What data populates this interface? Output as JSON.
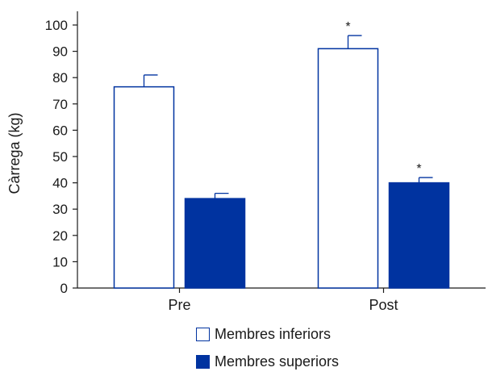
{
  "chart_data": {
    "type": "bar",
    "categories": [
      "Pre",
      "Post"
    ],
    "ylabel": "Càrrega (kg)",
    "ylim": [
      0,
      100
    ],
    "yticks": [
      0,
      10,
      20,
      30,
      40,
      50,
      60,
      70,
      80,
      90,
      100
    ],
    "series": [
      {
        "name": "Membres inferiors",
        "values": [
          76.5,
          91
        ],
        "errors": [
          4.5,
          5
        ],
        "significance": [
          "",
          "*"
        ],
        "fill": "#ffffff",
        "stroke": "#0033a0"
      },
      {
        "name": "Membres superiors",
        "values": [
          34,
          40
        ],
        "errors": [
          2,
          2
        ],
        "significance": [
          "",
          "*"
        ],
        "fill": "#0033a0",
        "stroke": "#0033a0"
      }
    ],
    "legend_position": "bottom-center"
  }
}
